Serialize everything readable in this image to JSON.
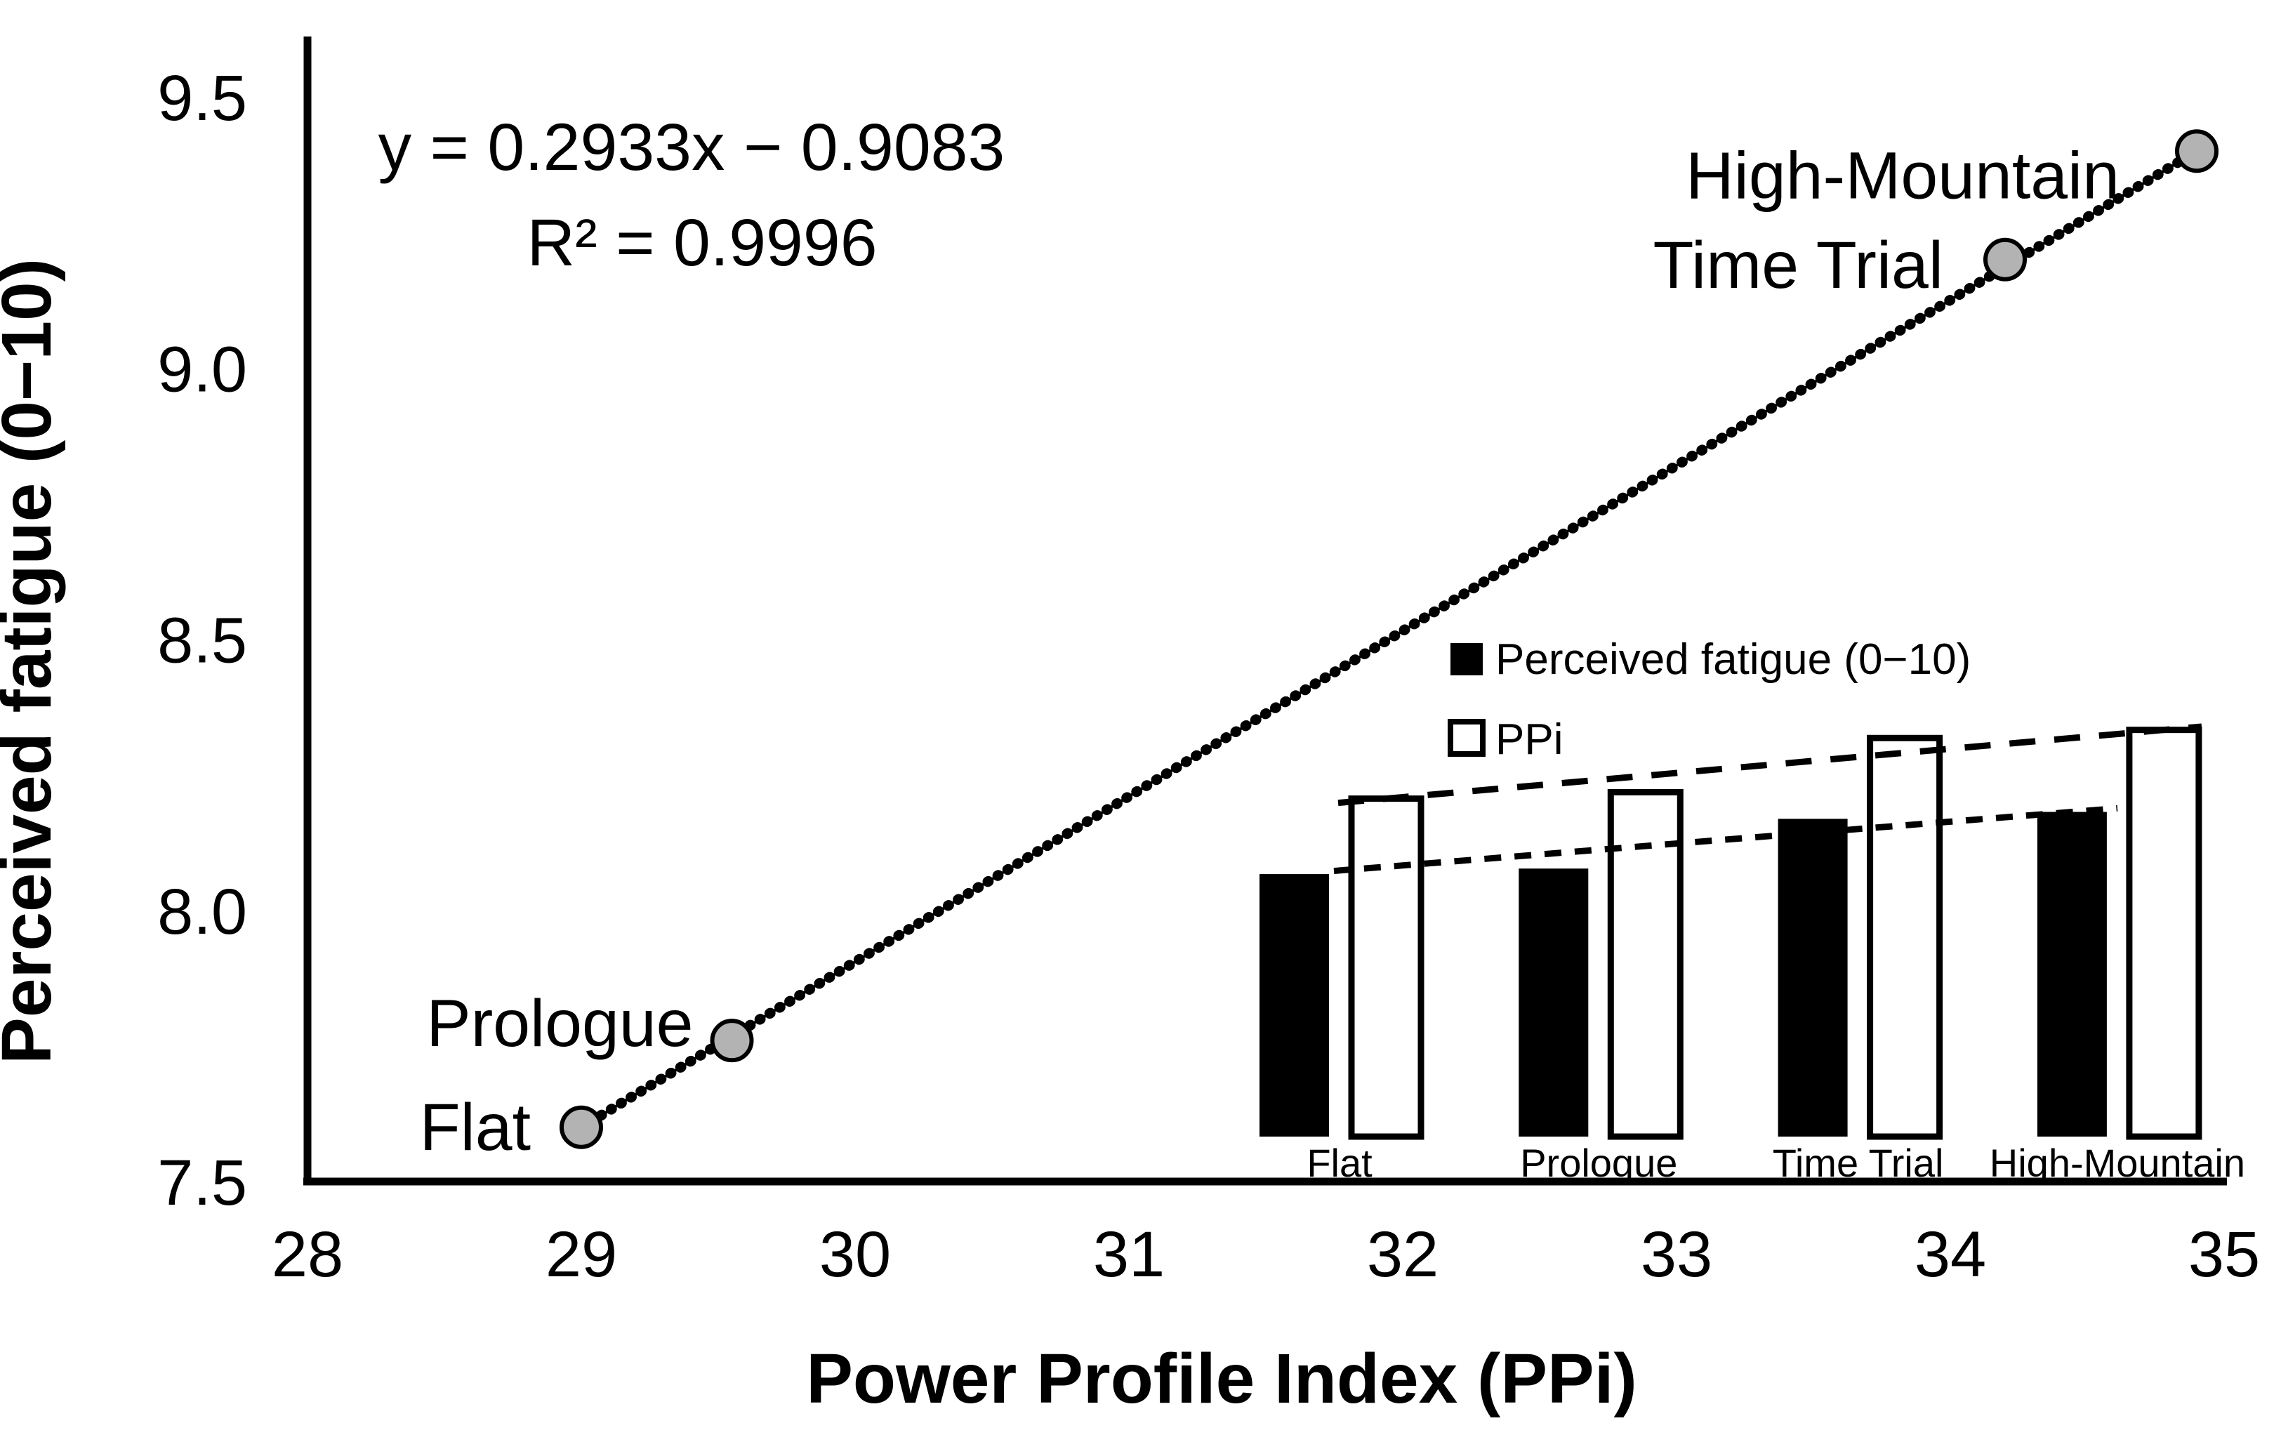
{
  "figure": {
    "background": "#ffffff",
    "ink_color": "#000000"
  },
  "chart_data": [
    {
      "type": "scatter",
      "title": "",
      "xlabel": "Power Profile Index (PPi)",
      "ylabel": "Perceived fatigue (0−10)",
      "xlim": [
        28,
        35
      ],
      "ylim": [
        7.5,
        9.5
      ],
      "xticks": [
        "28",
        "29",
        "30",
        "31",
        "32",
        "33",
        "34",
        "35"
      ],
      "yticks": [
        "7.5",
        "8.0",
        "8.5",
        "9.0",
        "9.5"
      ],
      "grid": false,
      "legend_position": "none",
      "equation": "y = 0.2933x − 0.9083",
      "r_squared": "R² = 0.9996",
      "trendline": {
        "slope": 0.2933,
        "intercept": -0.9083,
        "style": "beaded-black"
      },
      "points": [
        {
          "label": "Flat",
          "x": 29.0,
          "y": 7.6
        },
        {
          "label": "Prologue",
          "x": 29.55,
          "y": 7.76
        },
        {
          "label": "Time Trial",
          "x": 34.2,
          "y": 9.2
        },
        {
          "label": "High-Mountain",
          "x": 34.9,
          "y": 9.4
        }
      ],
      "point_style": {
        "fill": "#b3b3b3",
        "stroke": "#000000"
      }
    },
    {
      "type": "bar",
      "title": "",
      "xlabel": "",
      "ylabel": "",
      "categories": [
        "Flat",
        "Prologue",
        "Time Trial",
        "High-Mountain"
      ],
      "series": [
        {
          "name": "Perceived fatigue (0−10)",
          "values": [
            7.6,
            7.76,
            9.2,
            9.4
          ],
          "fill": "#000000"
        },
        {
          "name": "PPi",
          "values": [
            29.0,
            29.55,
            34.2,
            34.9
          ],
          "fill": "#ffffff"
        }
      ],
      "legend_position": "top-left",
      "trendlines_dashed": true,
      "axes_hidden": true
    }
  ]
}
